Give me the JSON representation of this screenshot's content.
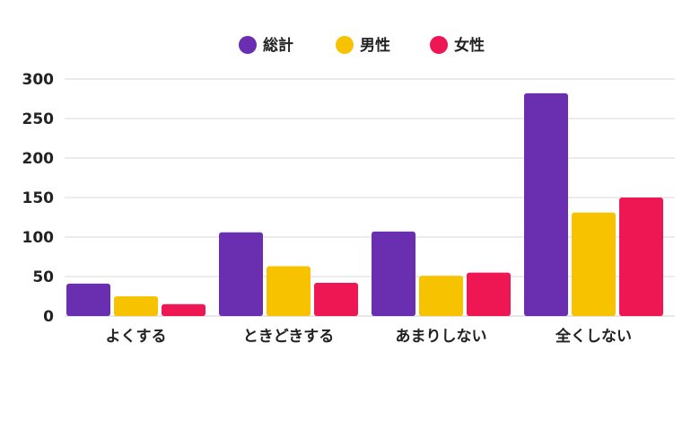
{
  "chart_data": {
    "type": "bar",
    "categories": [
      "よくする",
      "ときどきする",
      "あまりしない",
      "全くしない"
    ],
    "series": [
      {
        "name": "総計",
        "color": "#6a2fb0",
        "values": [
          41,
          106,
          107,
          282
        ]
      },
      {
        "name": "男性",
        "color": "#f7c200",
        "values": [
          25,
          63,
          51,
          131
        ]
      },
      {
        "name": "女性",
        "color": "#ef1654",
        "values": [
          15,
          42,
          55,
          150
        ]
      }
    ],
    "yticks": [
      "0",
      "50",
      "100",
      "150",
      "200",
      "250",
      "300"
    ],
    "ylim": [
      0,
      300
    ],
    "grid": true,
    "legend_position": "top-center"
  }
}
